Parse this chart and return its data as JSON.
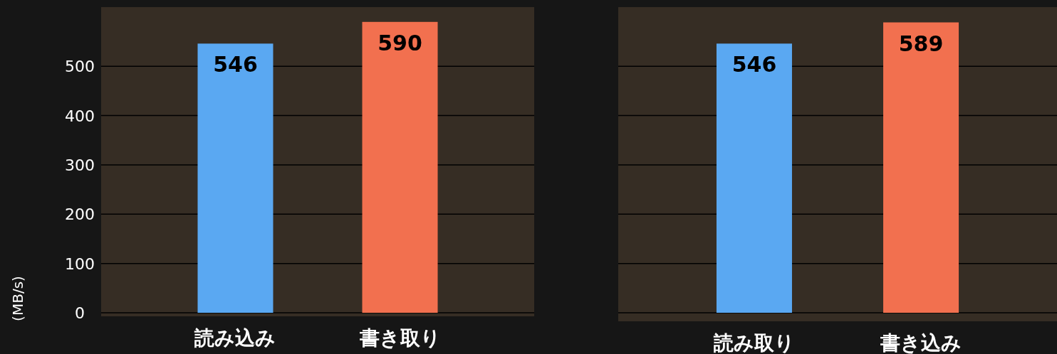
{
  "chart_data": [
    {
      "type": "bar",
      "ylabel": "(MB/s)",
      "categories": [
        "読み込み",
        "書き取り"
      ],
      "values": [
        546,
        590
      ],
      "colors": [
        "#5aa8f2",
        "#f2704f"
      ],
      "ylim": [
        0,
        620
      ],
      "yticks": [
        0,
        100,
        200,
        300,
        400,
        500
      ],
      "grid": "y",
      "data_labels": true
    },
    {
      "type": "bar",
      "categories": [
        "読み取り",
        "書き込み"
      ],
      "values": [
        546,
        589
      ],
      "colors": [
        "#5aa8f2",
        "#f2704f"
      ],
      "ylim": [
        0,
        620
      ],
      "yticks": [
        0,
        100,
        200,
        300,
        400,
        500
      ],
      "grid": "y",
      "data_labels": true,
      "tick_labels": "x"
    }
  ]
}
